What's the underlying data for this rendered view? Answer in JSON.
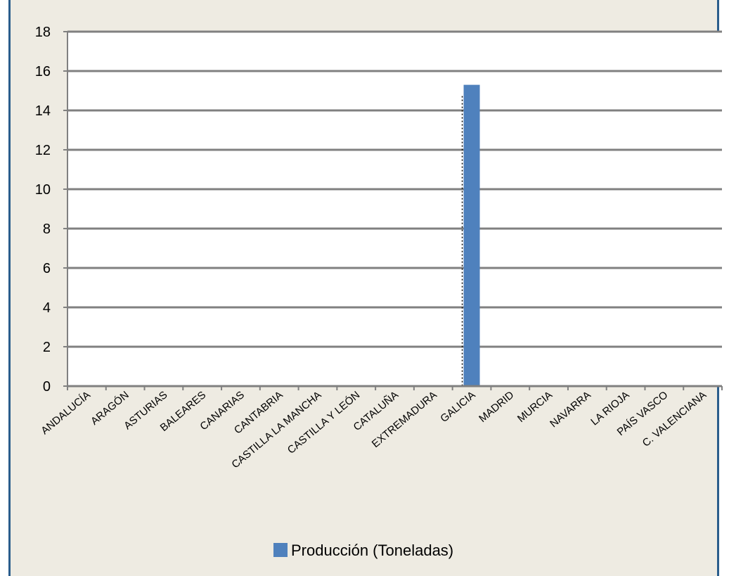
{
  "chart_data": {
    "type": "bar",
    "categories": [
      "ANDALUCÍA",
      "ARAGÓN",
      "ASTURIAS",
      "BALEARES",
      "CANARIAS",
      "CANTABRIA",
      "CASTILLA LA MANCHA",
      "CASTILLA Y LEÓN",
      "CATALUÑA",
      "EXTREMADURA",
      "GALICIA",
      "MADRID",
      "MURCIA",
      "NAVARRA",
      "LA RIOJA",
      "PAÍS VASCO",
      "C. VALENCIANA"
    ],
    "series": [
      {
        "name": "Producción (Toneladas)",
        "values": [
          0,
          0,
          0,
          0,
          0,
          0,
          0,
          0,
          0,
          0,
          15.3,
          0,
          0,
          0,
          0,
          0,
          0
        ]
      }
    ],
    "yticks": [
      "0",
      "2",
      "4",
      "6",
      "8",
      "10",
      "12",
      "14",
      "16",
      "18"
    ],
    "ylim": [
      0,
      18
    ],
    "grid": true,
    "legend_position": "bottom",
    "colors": {
      "bar": "#4f81bd",
      "background": "#eeebe2",
      "plot_area": "#ffffff",
      "gridline": "#808080",
      "frame_border": "#2a5d8c"
    }
  }
}
